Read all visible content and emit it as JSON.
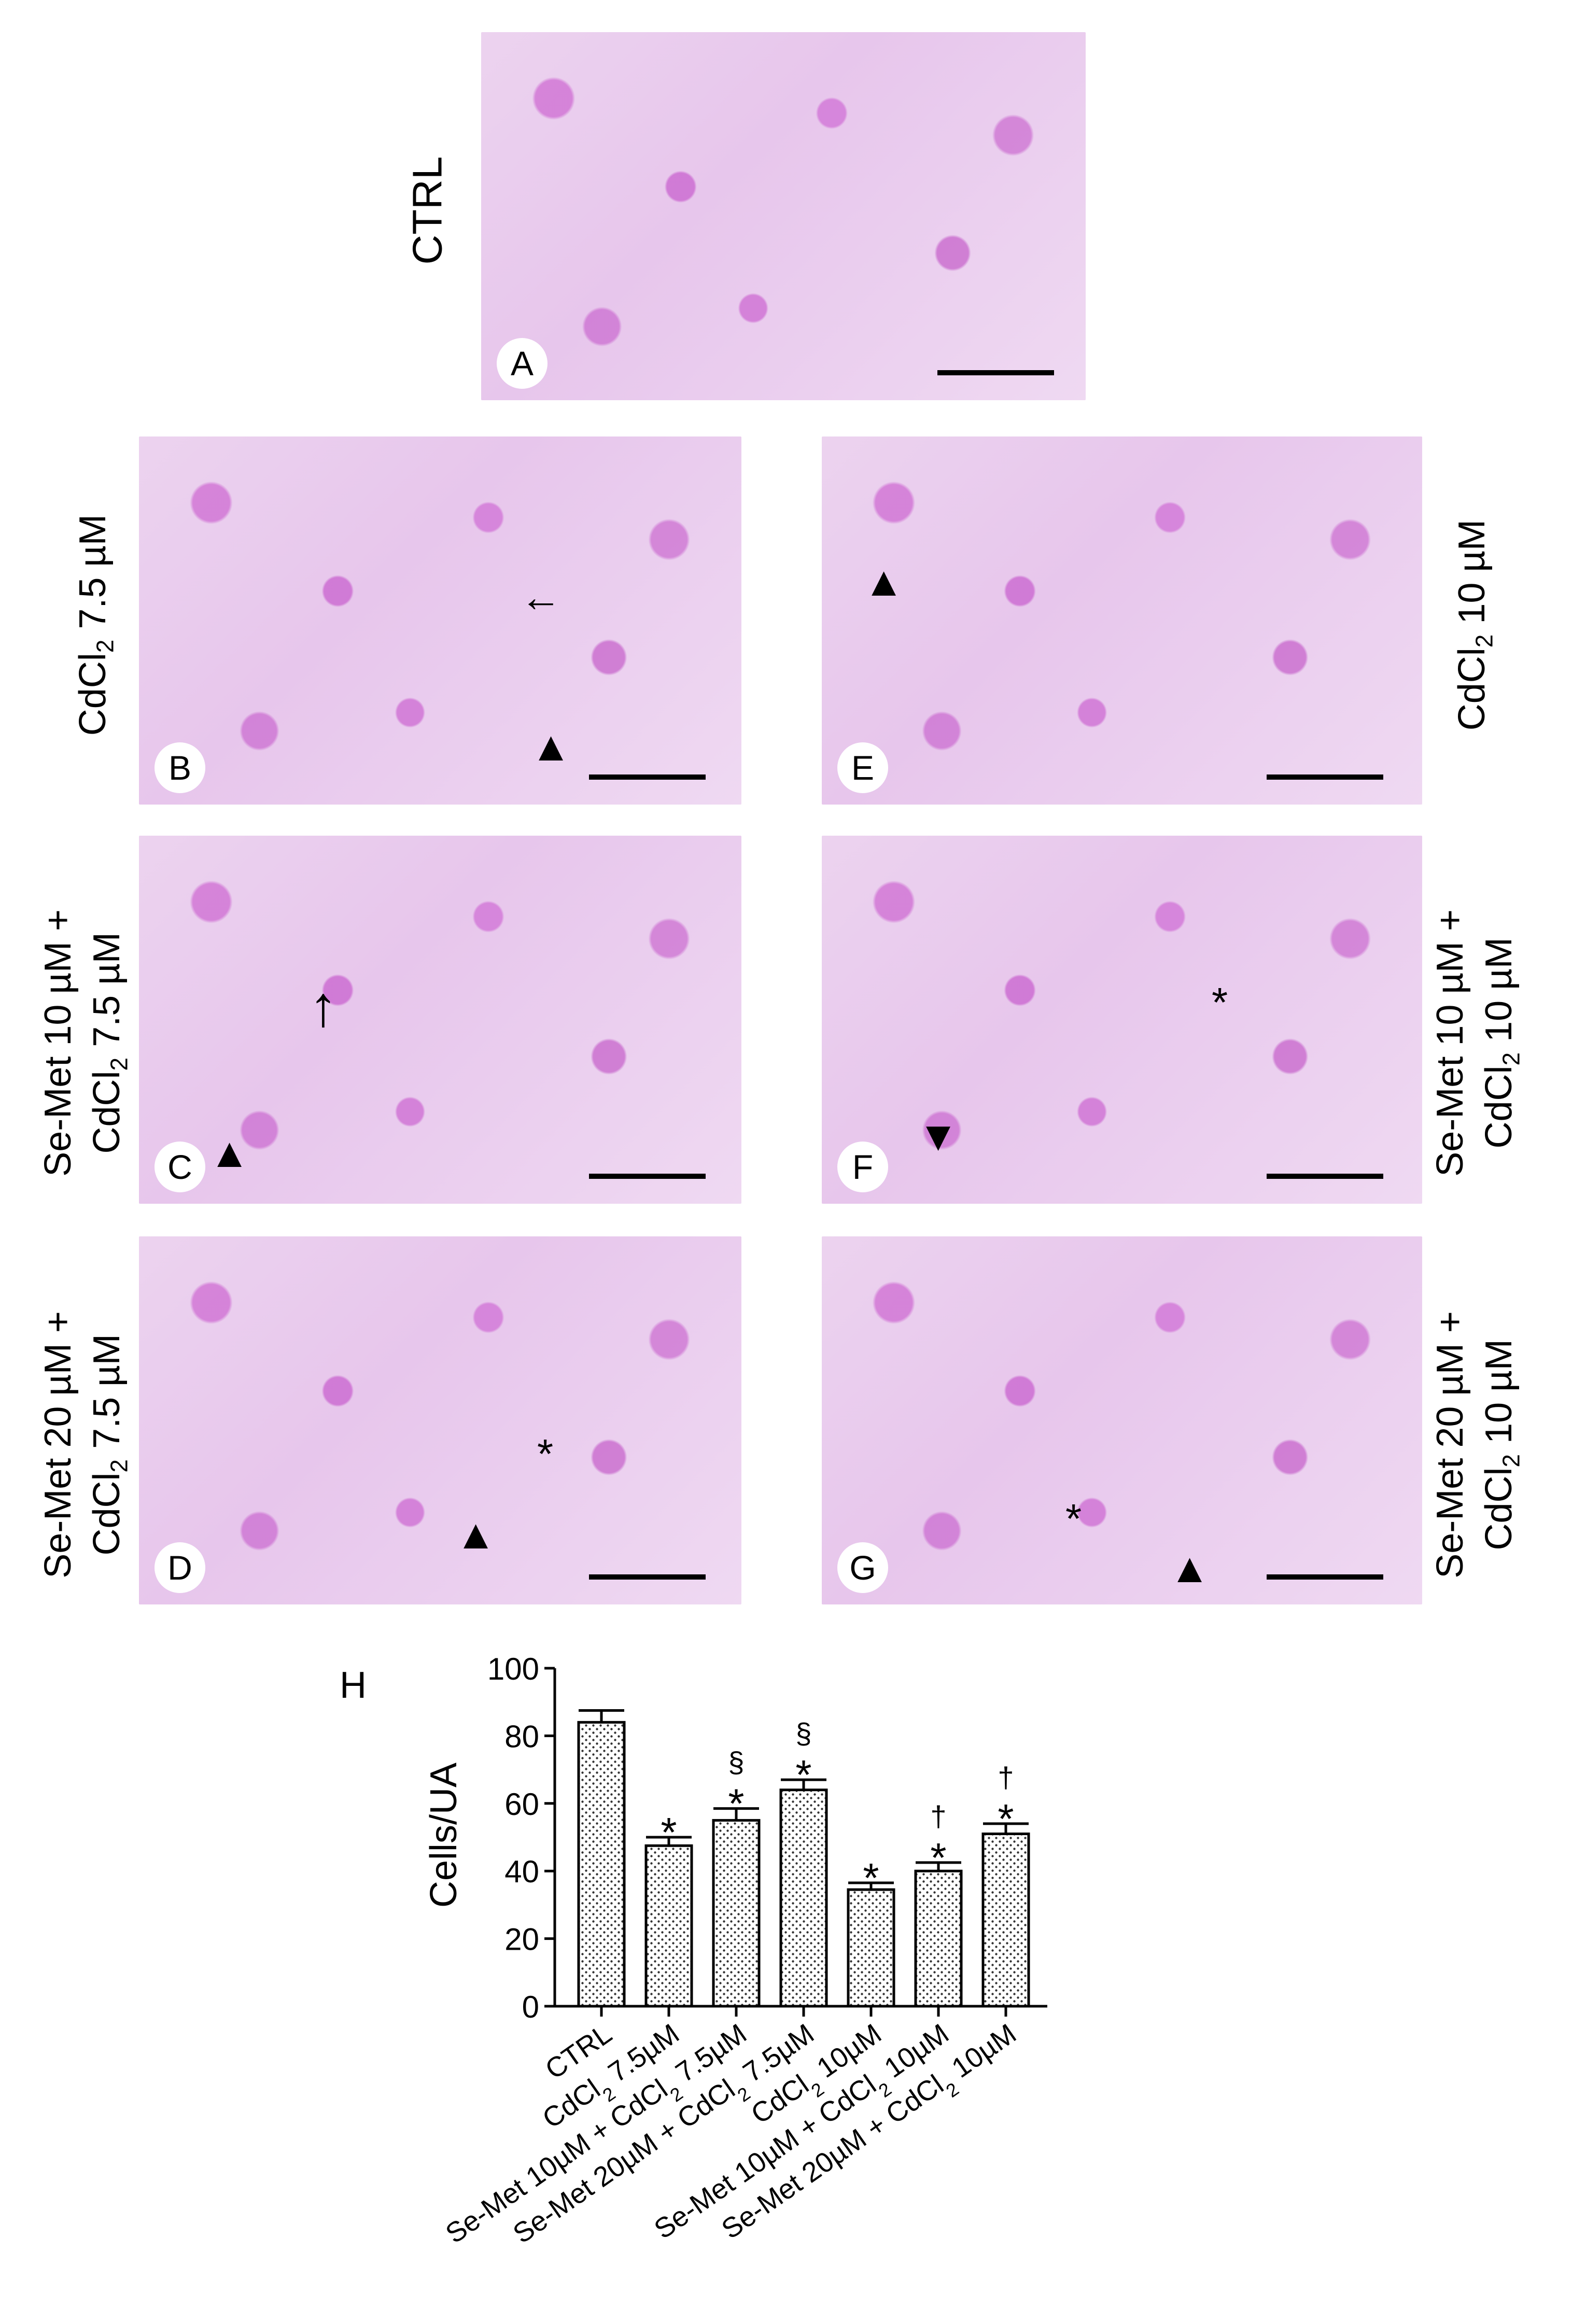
{
  "panels": [
    {
      "id": "A",
      "row_label": "CTRL"
    },
    {
      "id": "B",
      "row_label_pre": "CdCl",
      "row_label_sub": "2",
      "row_label_post": " 7.5 µM"
    },
    {
      "id": "E",
      "row_label_pre": "CdCl",
      "row_label_sub": "2",
      "row_label_post": " 10 µM"
    },
    {
      "id": "C",
      "row_label_top": "Se-Met 10 µM +",
      "row_label_pre": "CdCl",
      "row_label_sub": "2",
      "row_label_post": " 7.5 µM"
    },
    {
      "id": "F",
      "row_label_top": "Se-Met 10 µM +",
      "row_label_pre": "CdCl",
      "row_label_sub": "2",
      "row_label_post": " 10 µM"
    },
    {
      "id": "D",
      "row_label_top": "Se-Met 20 µM +",
      "row_label_pre": "CdCl",
      "row_label_sub": "2",
      "row_label_post": " 7.5 µM"
    },
    {
      "id": "G",
      "row_label_top": "Se-Met 20 µM +",
      "row_label_pre": "CdCl",
      "row_label_sub": "2",
      "row_label_post": " 10 µM"
    }
  ],
  "markers": {
    "arrow_right": "←",
    "arrow_up": "↑",
    "triangle_up": "▲",
    "triangle_down": "▼",
    "asterisk": "*"
  },
  "chart_panel_label": "H",
  "chart_data": {
    "type": "bar",
    "ylabel": "Cells/UA",
    "ylim": [
      0,
      100
    ],
    "yticks": [
      0,
      20,
      40,
      60,
      80,
      100
    ],
    "categories": [
      {
        "pre": "CTRL",
        "sub": "",
        "post": ""
      },
      {
        "pre": "CdCl",
        "sub": "2",
        "post": " 7.5µM"
      },
      {
        "pre": "Se-Met 10µM + CdCl",
        "sub": "2",
        "post": " 7.5µM"
      },
      {
        "pre": "Se-Met 20µM + CdCl",
        "sub": "2",
        "post": " 7.5µM"
      },
      {
        "pre": "CdCl",
        "sub": "2",
        "post": " 10µM"
      },
      {
        "pre": "Se-Met 10µM + CdCl",
        "sub": "2",
        "post": " 10µM"
      },
      {
        "pre": "Se-Met 20µM + CdCl",
        "sub": "2",
        "post": " 10µM"
      }
    ],
    "values": [
      84,
      47.5,
      55,
      64,
      34.5,
      40,
      51
    ],
    "errors": [
      3.5,
      2.5,
      3.5,
      3,
      2,
      2.5,
      3
    ],
    "annotations": [
      [],
      [
        "*"
      ],
      [
        "*",
        "§"
      ],
      [
        "*",
        "§"
      ],
      [
        "*"
      ],
      [
        "*",
        "†"
      ],
      [
        "*",
        "†"
      ]
    ]
  }
}
